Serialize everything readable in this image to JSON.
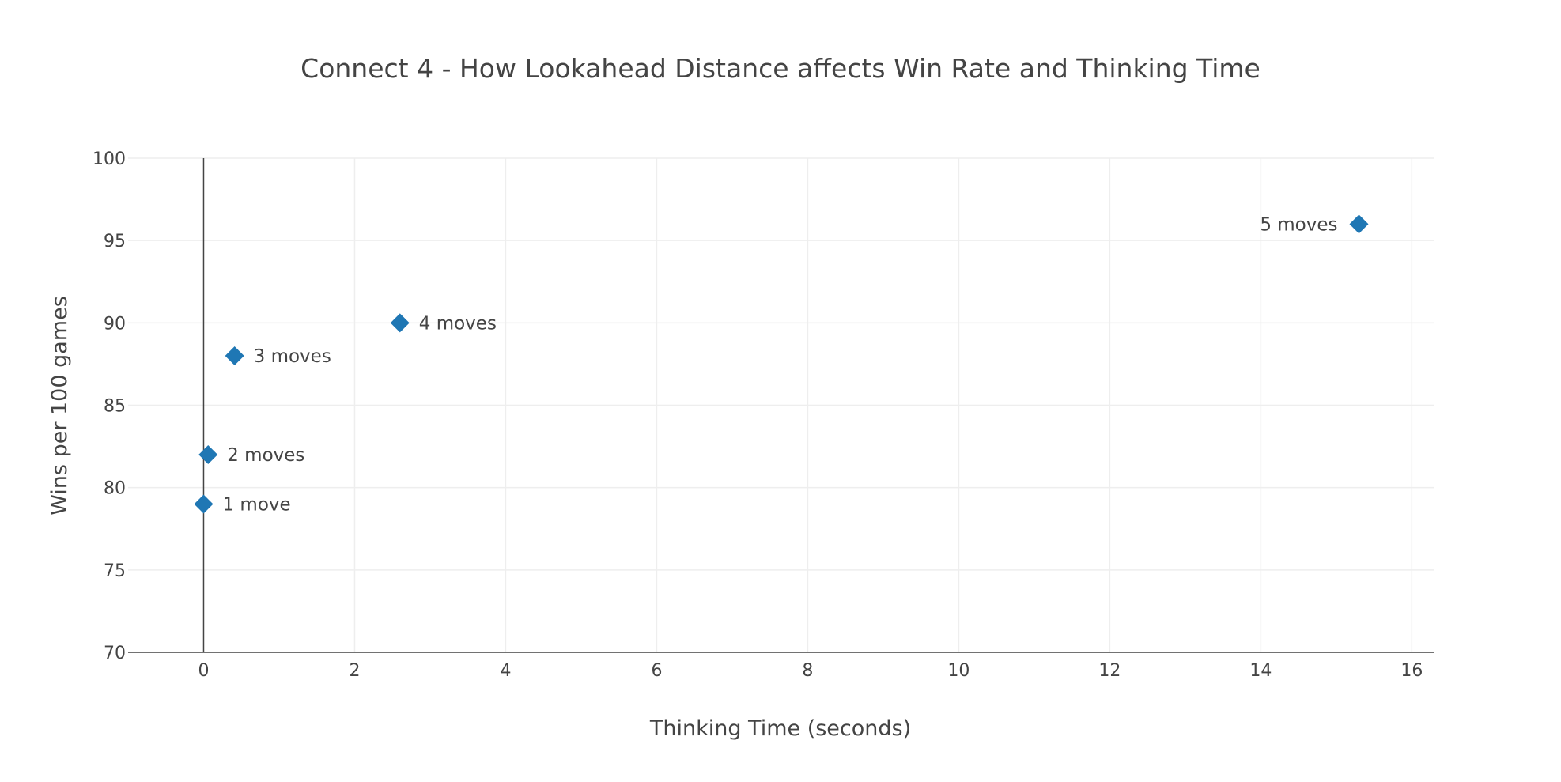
{
  "chart_data": {
    "type": "scatter",
    "title": "Connect 4 - How Lookahead Distance affects Win Rate and Thinking Time",
    "xlabel": "Thinking Time (seconds)",
    "ylabel": "Wins per 100 games",
    "xlim": [
      -1,
      16.3
    ],
    "ylim": [
      70,
      100
    ],
    "xticks": [
      0,
      2,
      4,
      6,
      8,
      10,
      12,
      14,
      16
    ],
    "yticks": [
      70,
      75,
      80,
      85,
      90,
      95,
      100
    ],
    "grid": true,
    "marker": "diamond",
    "marker_color": "#1f77b4",
    "points": [
      {
        "x": 0.0,
        "y": 79,
        "label": "1 move",
        "label_side": "right"
      },
      {
        "x": 0.06,
        "y": 82,
        "label": "2 moves",
        "label_side": "right"
      },
      {
        "x": 0.41,
        "y": 88,
        "label": "3 moves",
        "label_side": "right"
      },
      {
        "x": 2.6,
        "y": 90,
        "label": "4 moves",
        "label_side": "right"
      },
      {
        "x": 15.3,
        "y": 96,
        "label": "5 moves",
        "label_side": "left"
      }
    ]
  }
}
